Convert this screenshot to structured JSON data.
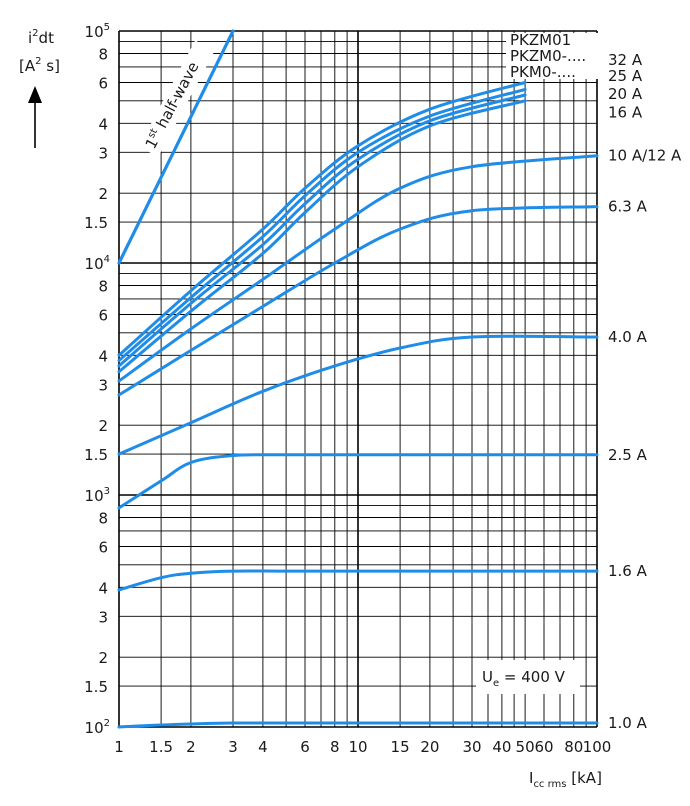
{
  "chart_data": {
    "type": "line",
    "x_scale": "log",
    "y_scale": "log",
    "xlim": [
      1,
      100
    ],
    "ylim": [
      100,
      100000
    ],
    "grid": true,
    "ylabel_main": "i",
    "ylabel_sup": "2",
    "ylabel_tail": "dt",
    "yunit_open": "[A",
    "yunit_sup": "2",
    "yunit_close": " s]",
    "xlabel_main": "I",
    "xlabel_sub": "cc rms",
    "xlabel_unit": " [kA]",
    "x_ticks": [
      {
        "v": 1,
        "t": "1"
      },
      {
        "v": 1.5,
        "t": "1.5"
      },
      {
        "v": 2,
        "t": "2"
      },
      {
        "v": 3,
        "t": "3"
      },
      {
        "v": 4,
        "t": "4"
      },
      {
        "v": 6,
        "t": "6"
      },
      {
        "v": 8,
        "t": "8"
      },
      {
        "v": 10,
        "t": "10"
      },
      {
        "v": 15,
        "t": "15"
      },
      {
        "v": 20,
        "t": "20"
      },
      {
        "v": 30,
        "t": "30"
      },
      {
        "v": 40,
        "t": "40"
      },
      {
        "v": 50,
        "t": "50"
      },
      {
        "v": 60,
        "t": "60"
      },
      {
        "v": 80,
        "t": "80"
      },
      {
        "v": 100,
        "t": "100"
      }
    ],
    "y_ticks": [
      {
        "v": 100,
        "base": "10",
        "exp": "2"
      },
      {
        "v": 150,
        "t": "1.5"
      },
      {
        "v": 200,
        "t": "2"
      },
      {
        "v": 300,
        "t": "3"
      },
      {
        "v": 400,
        "t": "4"
      },
      {
        "v": 600,
        "t": "6"
      },
      {
        "v": 800,
        "t": "8"
      },
      {
        "v": 1000,
        "base": "10",
        "exp": "3"
      },
      {
        "v": 1500,
        "t": "1.5"
      },
      {
        "v": 2000,
        "t": "2"
      },
      {
        "v": 3000,
        "t": "3"
      },
      {
        "v": 4000,
        "t": "4"
      },
      {
        "v": 6000,
        "t": "6"
      },
      {
        "v": 8000,
        "t": "8"
      },
      {
        "v": 10000,
        "base": "10",
        "exp": "4"
      },
      {
        "v": 15000,
        "t": "1.5"
      },
      {
        "v": 20000,
        "t": "2"
      },
      {
        "v": 30000,
        "t": "3"
      },
      {
        "v": 40000,
        "t": "4"
      },
      {
        "v": 60000,
        "t": "6"
      },
      {
        "v": 80000,
        "t": "8"
      },
      {
        "v": 100000,
        "base": "10",
        "exp": "5"
      }
    ],
    "x_grid": [
      1,
      1.5,
      2,
      3,
      4,
      5,
      6,
      7,
      8,
      9,
      10,
      15,
      20,
      25,
      30,
      35,
      40,
      45,
      50,
      60,
      70,
      80,
      90,
      100
    ],
    "y_grid": [
      100,
      150,
      200,
      300,
      400,
      500,
      600,
      700,
      800,
      900,
      1000,
      1500,
      2000,
      3000,
      4000,
      5000,
      6000,
      7000,
      8000,
      9000,
      10000,
      15000,
      20000,
      30000,
      40000,
      50000,
      60000,
      70000,
      80000,
      90000,
      100000
    ],
    "series": [
      {
        "name": "1.0 A",
        "x": [
          1,
          1.5,
          3,
          10,
          100
        ],
        "y": [
          100,
          102,
          104,
          104,
          104
        ]
      },
      {
        "name": "1.6 A",
        "x": [
          1,
          1.5,
          2,
          3,
          5,
          10,
          30,
          100
        ],
        "y": [
          390,
          440,
          460,
          470,
          470,
          470,
          470,
          470
        ]
      },
      {
        "name": "2.5 A",
        "x": [
          1,
          1.5,
          2,
          3,
          5,
          10,
          30,
          100
        ],
        "y": [
          880,
          1150,
          1380,
          1480,
          1490,
          1490,
          1490,
          1490
        ]
      },
      {
        "name": "4.0 A",
        "x": [
          1,
          2,
          4,
          8,
          15,
          30,
          100
        ],
        "y": [
          1500,
          2050,
          2800,
          3600,
          4300,
          4800,
          4800
        ]
      },
      {
        "name": "6.3 A",
        "x": [
          1,
          2,
          4,
          8,
          15,
          30,
          100
        ],
        "y": [
          2700,
          4200,
          6500,
          10000,
          14000,
          16800,
          17500
        ]
      },
      {
        "name": "10 A/12 A",
        "x": [
          1,
          2,
          4,
          8,
          15,
          30,
          100
        ],
        "y": [
          3100,
          5200,
          8500,
          14000,
          21000,
          26000,
          29000
        ]
      },
      {
        "name": "16 A",
        "x": [
          1,
          2,
          4,
          6,
          10,
          20,
          50
        ],
        "y": [
          3400,
          6200,
          11000,
          16500,
          26000,
          39000,
          50000
        ]
      },
      {
        "name": "20 A",
        "x": [
          1,
          2,
          4,
          6,
          10,
          20,
          50
        ],
        "y": [
          3600,
          6700,
          12000,
          18000,
          28000,
          41000,
          53000
        ]
      },
      {
        "name": "25 A",
        "x": [
          1,
          2,
          4,
          6,
          10,
          20,
          50
        ],
        "y": [
          3800,
          7100,
          13000,
          19500,
          30000,
          43000,
          56000
        ]
      },
      {
        "name": "32 A",
        "x": [
          1,
          2,
          4,
          6,
          10,
          20,
          50
        ],
        "y": [
          4000,
          7600,
          14000,
          21000,
          32000,
          46000,
          60000
        ]
      }
    ],
    "half_wave": {
      "label_1": "1",
      "label_sup": "st",
      "label_2": " half-wave",
      "x": [
        1,
        3
      ],
      "y": [
        10000,
        100000
      ]
    },
    "right_labels": [
      {
        "text": "32 A",
        "y": 75000
      },
      {
        "text": "25 A",
        "y": 64000
      },
      {
        "text": "20 A",
        "y": 53500
      },
      {
        "text": "16 A",
        "y": 44500
      },
      {
        "text": "10 A/12 A",
        "y": 29000
      },
      {
        "text": "6.3 A",
        "y": 17500
      },
      {
        "text": "4.0 A",
        "y": 4800
      },
      {
        "text": "2.5 A",
        "y": 1490
      },
      {
        "text": "1.6 A",
        "y": 470
      },
      {
        "text": "1.0 A",
        "y": 104
      }
    ],
    "model_labels": [
      "PKZM01",
      "PKZM0-....",
      "PKM0-...."
    ],
    "voltage": {
      "main": "U",
      "sub": "e",
      "rest": " = 400 V"
    }
  }
}
